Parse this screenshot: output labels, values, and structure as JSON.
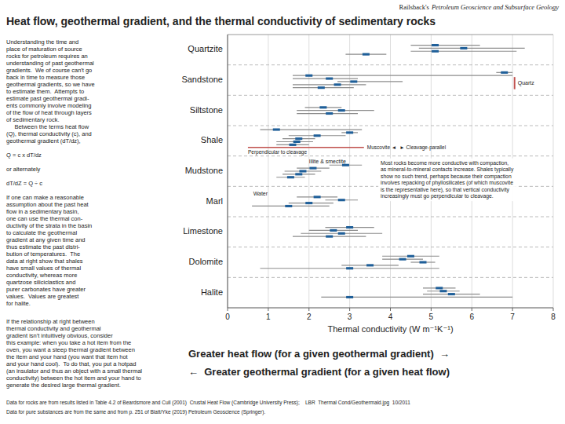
{
  "chart_data": {
    "type": "range",
    "orientation": "horizontal",
    "title": "Heat flow, geothermal gradient, and the thermal conductivity of sedimentary rocks",
    "header_plain": "Railsback's",
    "header_italic": "Petroleum Geoscience and Subsurface Geology",
    "xlabel": "Thermal conductivity (W m⁻¹K⁻¹)",
    "xlim": [
      0,
      8
    ],
    "xticks": [
      0,
      1,
      2,
      3,
      4,
      5,
      6,
      7,
      8
    ],
    "grid": true,
    "categories": [
      "Quartzite",
      "Sandstone",
      "Siltstone",
      "Shale",
      "Mudstone",
      "Marl",
      "Limestone",
      "Dolomite",
      "Halite"
    ],
    "values": [
      [
        [
          2.9,
          3.4,
          3.9
        ],
        [
          4.5,
          5.1,
          7.1
        ],
        [
          4.7,
          5.8,
          7.3
        ],
        [
          4.5,
          5.1,
          6.2
        ]
      ],
      [
        [
          1.6,
          2.3,
          3.1
        ],
        [
          1.6,
          2.7,
          3.4
        ],
        [
          2.7,
          3.1,
          4.3
        ],
        [
          1.6,
          2.5,
          3.2
        ],
        [
          1.6,
          2.0,
          7.0
        ],
        [
          6.6,
          6.8,
          7.0
        ]
      ],
      [
        [
          1.7,
          2.5,
          3.2
        ],
        [
          1.7,
          2.8,
          3.6
        ],
        [
          1.9,
          2.35,
          2.8
        ]
      ],
      [
        [
          1.2,
          1.6,
          2.0
        ],
        [
          1.2,
          1.7,
          2.1
        ],
        [
          1.35,
          1.75,
          2.15
        ],
        [
          1.5,
          2.2,
          2.9
        ],
        [
          2.8,
          3.0,
          3.2
        ],
        [
          0.8,
          1.2,
          3.3
        ]
      ],
      [
        [
          1.2,
          1.55,
          1.9
        ],
        [
          1.35,
          1.75,
          2.15
        ],
        [
          1.4,
          1.85,
          2.3
        ],
        [
          1.7,
          2.1,
          2.5
        ],
        [
          2.5,
          2.9,
          3.3
        ]
      ],
      [
        [
          0.6,
          1.5,
          2.5
        ],
        [
          1.5,
          2.0,
          2.6
        ],
        [
          2.4,
          2.8,
          3.2
        ],
        [
          1.7,
          2.2,
          2.7
        ]
      ],
      [
        [
          1.6,
          2.5,
          3.4
        ],
        [
          1.8,
          2.8,
          3.8
        ],
        [
          2.0,
          2.6,
          3.2
        ],
        [
          2.4,
          3.0,
          3.6
        ]
      ],
      [
        [
          0.8,
          3.0,
          5.2
        ],
        [
          2.8,
          3.5,
          4.2
        ],
        [
          4.5,
          4.8,
          5.1
        ],
        [
          3.8,
          4.3,
          4.8
        ],
        [
          3.8,
          4.5,
          5.2
        ]
      ],
      [
        [
          2.3,
          3.0,
          7.0
        ],
        [
          4.8,
          5.5,
          6.2
        ],
        [
          4.9,
          5.3,
          5.7
        ],
        [
          4.8,
          5.2,
          5.6
        ]
      ]
    ],
    "reference_lines": [
      {
        "category": "Shale",
        "x": [
          0.5,
          3.35
        ],
        "label": "Perpendicular to cleavage",
        "end_labels": [
          "Muscovite ◄",
          "► Cleavage-parallel"
        ]
      },
      {
        "category": "Sandstone",
        "x": 7.05,
        "label": "Quartz"
      }
    ],
    "annotations": [
      {
        "text": "Illite & smectite",
        "category": "Mudstone",
        "x": 2.0
      },
      {
        "text": "Water",
        "category": "Marl",
        "x": 0.63
      }
    ],
    "note": "Most rocks become more conductive with compaction,\nas mineral-to-mineral contacts increase. Shales typically\nshow no such trend, perhaps because their compaction\ninvolves repacking of phyllosilicates (of which muscovite\nis the representative here), so that vertical conductivity\nincreasingly must go perpendicular to cleavage.",
    "intro_text": "Understanding the time and\nplace of maturation of source\nrocks for petroleum requires an\nunderstanding of past geothermal\ngradients.  We of course can't go\nback in time to measure those\ngeothermal gradients, so we have\nto estimate them.  Attempts to\nestimate past geothermal gradi-\nents commonly involve modeling\nof the flow of heat through layers\nof sedimentary rock.\n     Between the terms heat flow\n(Q), thermal conductivity (c), and\ngeothermal gradient (dT/dz),\n\nQ = c x dT/dz\n\nor alternately\n\ndT/dZ = Q ÷ c\n\nIf one can make a reasonable\nassumption about the past heat\nflow in a sedimentary basin,\none can use the thermal con-\nductivity of the strata in the basin\nto calculate the geothermal\ngradient at any given time and\nthus estimate the past distri-\nbution of temperatures.  The\ndata at right show that shales\nhave small values of thermal\nconductivity, whereas more\nquartzose siliciclastics and\npurer carbonates have greater\nvalues.  Values are greatest\nfor halite.",
    "side_text": "If the relationship at right between\nthermal conductivity and geothermal\ngradient isn't intuitively obvious, consider\nthis example: when you take a hot item from the\noven, you want a steep thermal gradient between\nthe item and your hand (you want that item hot\nand your hand cool).  To do that, you put a hotpad\n(an insulator and thus an object with a small thermal\nconductivity) between the hot item and your hand to\ngenerate the desired large thermal gradient.",
    "arrows": [
      "Greater heat flow (for a given geothermal gradient)  →",
      "←  Greater geothermal gradient (for a given heat flow)"
    ],
    "footnotes": [
      "Data for rocks are from results listed in Table 4.2 of Beardsmore and Cull (2001)  Crustal Heat Flow (Cambridge University Press);    LBR  Thermal Cond/Geothermald.jpg  10/2011",
      "Data for pure substances are from the same and from p. 251 of Blatt/Yke (2019) Petroleum Geoscience (Springer)."
    ]
  }
}
